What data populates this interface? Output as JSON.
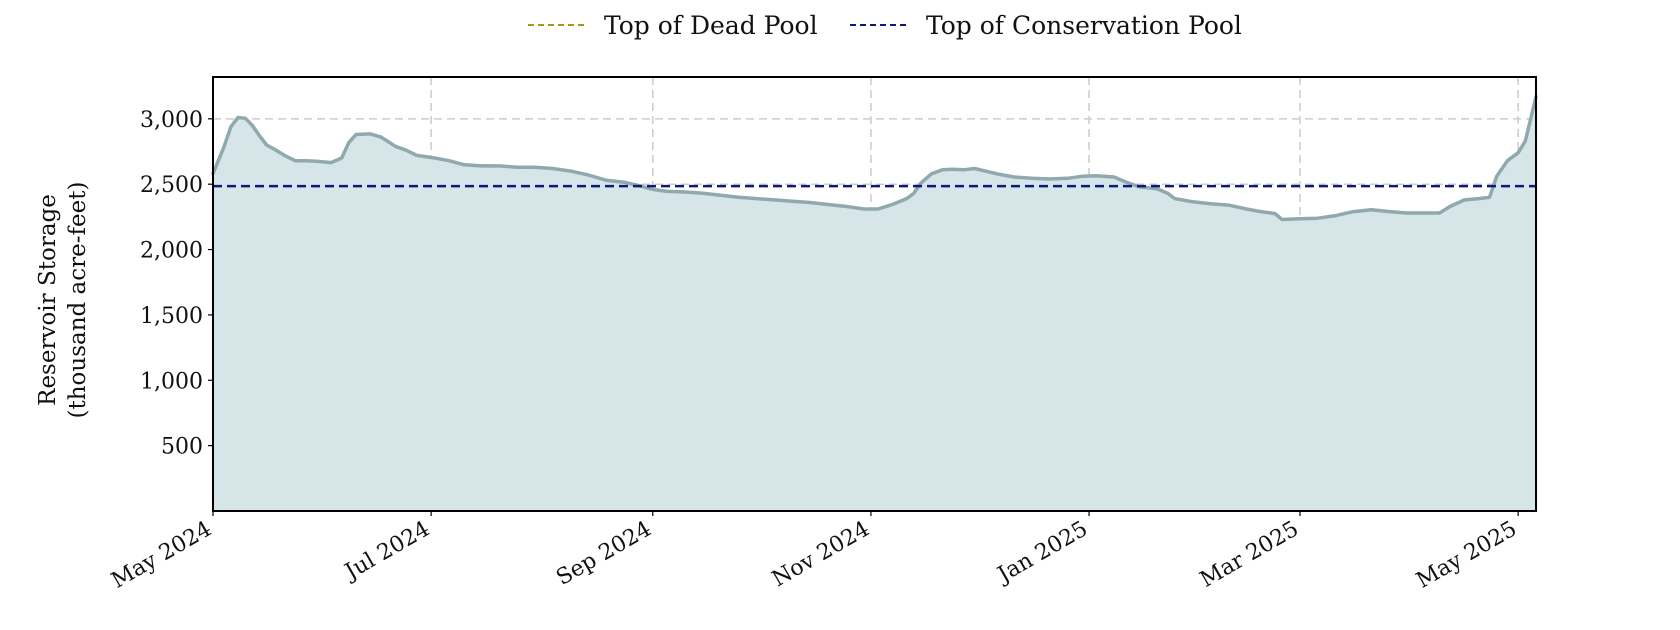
{
  "chart_data": {
    "type": "area",
    "ylabel_line1": "Reservoir Storage",
    "ylabel_line2": "(thousand acre-feet)",
    "ylim": [
      0,
      3320
    ],
    "xlim": [
      "2024-05-01",
      "2025-05-06"
    ],
    "grid": true,
    "legend_placement": "top-center",
    "yticks": [
      500,
      1000,
      1500,
      2000,
      2500,
      3000
    ],
    "ytick_labels": [
      "500",
      "1,000",
      "1,500",
      "2,000",
      "2,500",
      "3,000"
    ],
    "xticks": [
      {
        "date": "2024-05-01",
        "label": "May 2024"
      },
      {
        "date": "2024-07-01",
        "label": "Jul 2024"
      },
      {
        "date": "2024-09-01",
        "label": "Sep 2024"
      },
      {
        "date": "2024-11-01",
        "label": "Nov 2024"
      },
      {
        "date": "2025-01-01",
        "label": "Jan 2025"
      },
      {
        "date": "2025-03-01",
        "label": "Mar 2025"
      },
      {
        "date": "2025-05-01",
        "label": "May 2025"
      }
    ],
    "reference_lines": [
      {
        "name": "Top of Dead Pool",
        "color": "#a09a1a",
        "value": null
      },
      {
        "name": "Top of Conservation Pool",
        "color": "#0d1a7a",
        "value": 2485
      }
    ],
    "series": [
      {
        "color": "#8fa9ae",
        "fill": "#d6e5e8",
        "points": [
          [
            "2024-05-01",
            2580
          ],
          [
            "2024-05-04",
            2780
          ],
          [
            "2024-05-06",
            2940
          ],
          [
            "2024-05-08",
            3010
          ],
          [
            "2024-05-10",
            3005
          ],
          [
            "2024-05-12",
            2950
          ],
          [
            "2024-05-14",
            2870
          ],
          [
            "2024-05-16",
            2800
          ],
          [
            "2024-05-18",
            2770
          ],
          [
            "2024-05-21",
            2720
          ],
          [
            "2024-05-24",
            2680
          ],
          [
            "2024-05-27",
            2680
          ],
          [
            "2024-05-30",
            2675
          ],
          [
            "2024-06-03",
            2665
          ],
          [
            "2024-06-06",
            2700
          ],
          [
            "2024-06-08",
            2820
          ],
          [
            "2024-06-10",
            2880
          ],
          [
            "2024-06-14",
            2885
          ],
          [
            "2024-06-17",
            2860
          ],
          [
            "2024-06-21",
            2790
          ],
          [
            "2024-06-24",
            2760
          ],
          [
            "2024-06-27",
            2720
          ],
          [
            "2024-07-02",
            2700
          ],
          [
            "2024-07-06",
            2680
          ],
          [
            "2024-07-10",
            2650
          ],
          [
            "2024-07-15",
            2640
          ],
          [
            "2024-07-20",
            2640
          ],
          [
            "2024-07-25",
            2630
          ],
          [
            "2024-07-30",
            2630
          ],
          [
            "2024-08-04",
            2620
          ],
          [
            "2024-08-09",
            2600
          ],
          [
            "2024-08-14",
            2570
          ],
          [
            "2024-08-19",
            2530
          ],
          [
            "2024-08-24",
            2515
          ],
          [
            "2024-08-28",
            2490
          ],
          [
            "2024-09-01",
            2460
          ],
          [
            "2024-09-05",
            2445
          ],
          [
            "2024-09-10",
            2440
          ],
          [
            "2024-09-15",
            2430
          ],
          [
            "2024-09-20",
            2415
          ],
          [
            "2024-09-25",
            2400
          ],
          [
            "2024-09-30",
            2390
          ],
          [
            "2024-10-05",
            2380
          ],
          [
            "2024-10-10",
            2370
          ],
          [
            "2024-10-15",
            2360
          ],
          [
            "2024-10-20",
            2345
          ],
          [
            "2024-10-25",
            2330
          ],
          [
            "2024-10-30",
            2310
          ],
          [
            "2024-11-03",
            2310
          ],
          [
            "2024-11-07",
            2345
          ],
          [
            "2024-11-11",
            2390
          ],
          [
            "2024-11-13",
            2430
          ],
          [
            "2024-11-15",
            2510
          ],
          [
            "2024-11-18",
            2580
          ],
          [
            "2024-11-21",
            2610
          ],
          [
            "2024-11-24",
            2615
          ],
          [
            "2024-11-27",
            2610
          ],
          [
            "2024-11-30",
            2620
          ],
          [
            "2024-12-03",
            2600
          ],
          [
            "2024-12-07",
            2575
          ],
          [
            "2024-12-11",
            2555
          ],
          [
            "2024-12-16",
            2545
          ],
          [
            "2024-12-21",
            2540
          ],
          [
            "2024-12-26",
            2545
          ],
          [
            "2024-12-30",
            2560
          ],
          [
            "2025-01-03",
            2565
          ],
          [
            "2025-01-08",
            2555
          ],
          [
            "2025-01-11",
            2520
          ],
          [
            "2025-01-15",
            2480
          ],
          [
            "2025-01-20",
            2465
          ],
          [
            "2025-01-23",
            2430
          ],
          [
            "2025-01-25",
            2390
          ],
          [
            "2025-01-30",
            2365
          ],
          [
            "2025-02-04",
            2350
          ],
          [
            "2025-02-09",
            2340
          ],
          [
            "2025-02-14",
            2310
          ],
          [
            "2025-02-18",
            2290
          ],
          [
            "2025-02-22",
            2275
          ],
          [
            "2025-02-24",
            2230
          ],
          [
            "2025-03-01",
            2235
          ],
          [
            "2025-03-06",
            2240
          ],
          [
            "2025-03-11",
            2260
          ],
          [
            "2025-03-16",
            2290
          ],
          [
            "2025-03-21",
            2305
          ],
          [
            "2025-03-26",
            2290
          ],
          [
            "2025-03-31",
            2280
          ],
          [
            "2025-04-05",
            2280
          ],
          [
            "2025-04-09",
            2280
          ],
          [
            "2025-04-12",
            2330
          ],
          [
            "2025-04-16",
            2380
          ],
          [
            "2025-04-20",
            2390
          ],
          [
            "2025-04-23",
            2400
          ],
          [
            "2025-04-25",
            2560
          ],
          [
            "2025-04-28",
            2680
          ],
          [
            "2025-05-01",
            2740
          ],
          [
            "2025-05-03",
            2830
          ],
          [
            "2025-05-06",
            3170
          ]
        ]
      }
    ]
  }
}
